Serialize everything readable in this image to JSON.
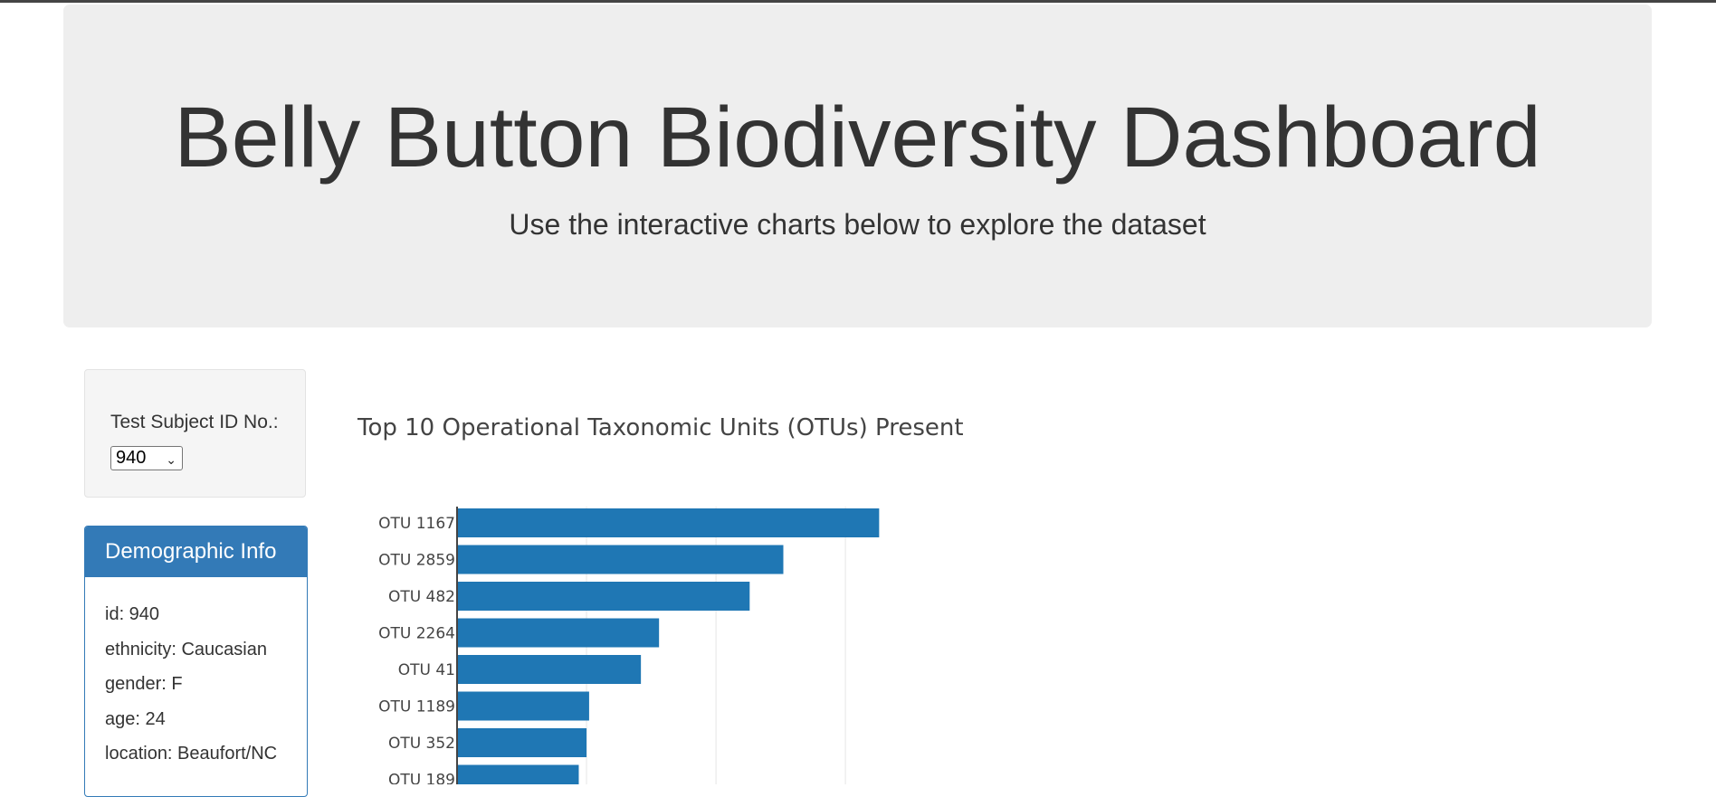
{
  "header": {
    "title": "Belly Button Biodiversity Dashboard",
    "subtitle": "Use the interactive charts below to explore the dataset"
  },
  "selector": {
    "label": "Test Subject ID No.:",
    "selected": "940"
  },
  "demographics": {
    "title": "Demographic Info",
    "rows": [
      "id: 940",
      "ethnicity: Caucasian",
      "gender: F",
      "age: 24",
      "location: Beaufort/NC"
    ]
  },
  "colors": {
    "bar": "#1f77b4",
    "panel": "#337ab7"
  },
  "chart_data": {
    "type": "bar",
    "orientation": "horizontal",
    "title": "Top 10 Operational Taxonomic Units (OTUs) Present",
    "categories": [
      "OTU 1167",
      "OTU 2859",
      "OTU 482",
      "OTU 2264",
      "OTU 41",
      "OTU 1189",
      "OTU 352",
      "OTU 189"
    ],
    "values": [
      163,
      126,
      113,
      78,
      71,
      51,
      50,
      47
    ],
    "xlim": [
      0,
      180
    ],
    "grid": true
  }
}
